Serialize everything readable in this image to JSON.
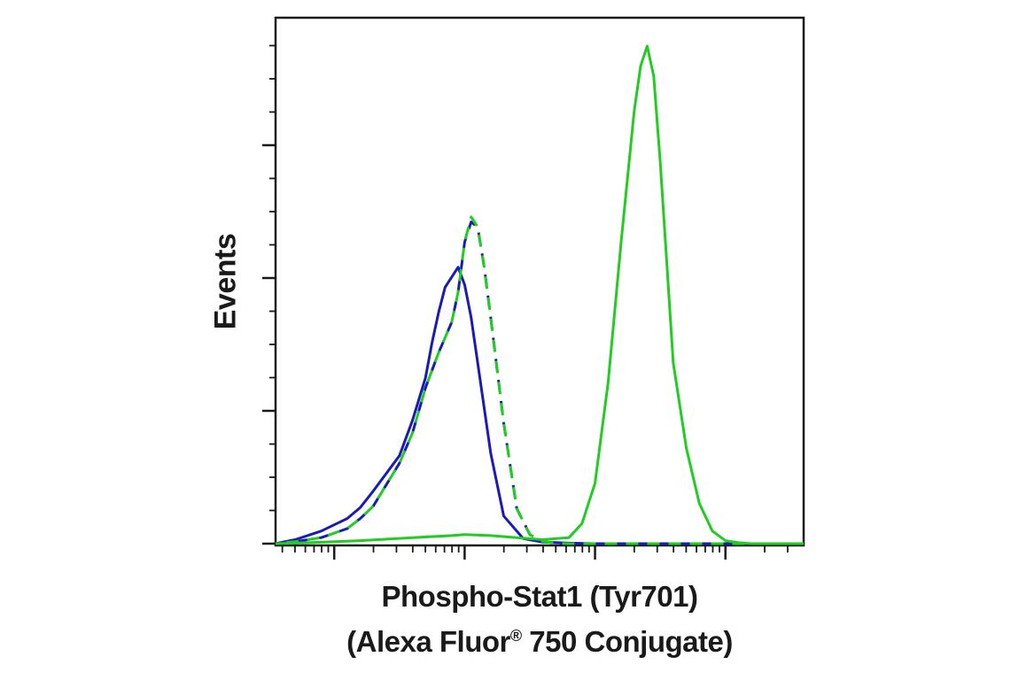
{
  "chart_data": {
    "type": "line",
    "xlabel_line1": "Phospho-Stat1 (Tyr701)",
    "xlabel_line2_pre": "(Alexa Fluor",
    "xlabel_line2_sup": "®",
    "xlabel_line2_post": " 750 Conjugate)",
    "ylabel": "Events",
    "x_scale": "log",
    "xlim": [
      -0.45,
      3.6
    ],
    "ylim": [
      0,
      1.0
    ],
    "grid": false,
    "legend": "none",
    "series": [
      {
        "color": "#1a1ab4",
        "dash": "solid",
        "x": [
          -0.45,
          -0.3,
          -0.1,
          0.1,
          0.2,
          0.3,
          0.5,
          0.6,
          0.7,
          0.75,
          0.8,
          0.85,
          0.9,
          0.95,
          1.0,
          1.05,
          1.1,
          1.2,
          1.3,
          1.45,
          1.6,
          1.8,
          2.0,
          2.2,
          2.4,
          2.6,
          2.8,
          3.0,
          3.2,
          3.4,
          3.6
        ],
        "y": [
          0.0,
          0.008,
          0.025,
          0.05,
          0.072,
          0.105,
          0.175,
          0.245,
          0.33,
          0.4,
          0.46,
          0.51,
          0.53,
          0.55,
          0.515,
          0.45,
          0.36,
          0.18,
          0.055,
          0.01,
          0.003,
          0.001,
          0.0,
          0.0,
          0.0,
          0.0,
          0.0,
          0.0,
          0.0,
          0.0,
          0.0
        ]
      },
      {
        "color": "#1a1ab4",
        "dash": "dashed",
        "x": [
          -0.45,
          -0.3,
          -0.1,
          0.1,
          0.2,
          0.3,
          0.5,
          0.6,
          0.7,
          0.8,
          0.9,
          0.95,
          1.0,
          1.05,
          1.1,
          1.15,
          1.2,
          1.3,
          1.4,
          1.5,
          1.6,
          1.7,
          1.8,
          2.0,
          2.2,
          2.4,
          2.6,
          2.8,
          3.0,
          3.2,
          3.4,
          3.6
        ],
        "y": [
          0.0,
          0.004,
          0.012,
          0.03,
          0.05,
          0.075,
          0.16,
          0.22,
          0.31,
          0.38,
          0.44,
          0.5,
          0.6,
          0.64,
          0.63,
          0.55,
          0.45,
          0.24,
          0.07,
          0.018,
          0.004,
          0.001,
          0.0,
          0.0,
          0.0,
          0.0,
          0.0,
          0.0,
          0.0,
          0.0,
          0.0,
          0.0
        ]
      },
      {
        "color": "#22cc22",
        "dash": "dashed",
        "x": [
          -0.45,
          -0.3,
          -0.1,
          0.1,
          0.2,
          0.3,
          0.5,
          0.6,
          0.7,
          0.8,
          0.9,
          0.95,
          1.0,
          1.05,
          1.1,
          1.15,
          1.2,
          1.3,
          1.4,
          1.5,
          1.6,
          1.7,
          1.8,
          2.0,
          2.2,
          2.4,
          2.6,
          2.8,
          3.0,
          3.2,
          3.4,
          3.6
        ],
        "y": [
          0.0,
          0.004,
          0.012,
          0.03,
          0.05,
          0.075,
          0.16,
          0.22,
          0.31,
          0.38,
          0.44,
          0.5,
          0.6,
          0.65,
          0.63,
          0.55,
          0.45,
          0.24,
          0.07,
          0.018,
          0.004,
          0.001,
          0.0,
          0.0,
          0.0,
          0.0,
          0.0,
          0.0,
          0.0,
          0.0,
          0.0,
          0.0
        ]
      },
      {
        "color": "#22cc22",
        "dash": "solid",
        "x": [
          -0.45,
          -0.2,
          0.2,
          0.6,
          0.9,
          1.0,
          1.2,
          1.4,
          1.6,
          1.8,
          1.9,
          2.0,
          2.1,
          2.2,
          2.3,
          2.35,
          2.4,
          2.45,
          2.5,
          2.55,
          2.6,
          2.7,
          2.8,
          2.9,
          3.0,
          3.1,
          3.2,
          3.3,
          3.4,
          3.6
        ],
        "y": [
          0.0,
          0.002,
          0.006,
          0.012,
          0.016,
          0.018,
          0.016,
          0.012,
          0.008,
          0.012,
          0.04,
          0.12,
          0.32,
          0.6,
          0.86,
          0.95,
          0.99,
          0.93,
          0.76,
          0.56,
          0.36,
          0.19,
          0.08,
          0.025,
          0.006,
          0.002,
          0.0,
          0.0,
          0.0,
          0.0
        ]
      }
    ]
  }
}
